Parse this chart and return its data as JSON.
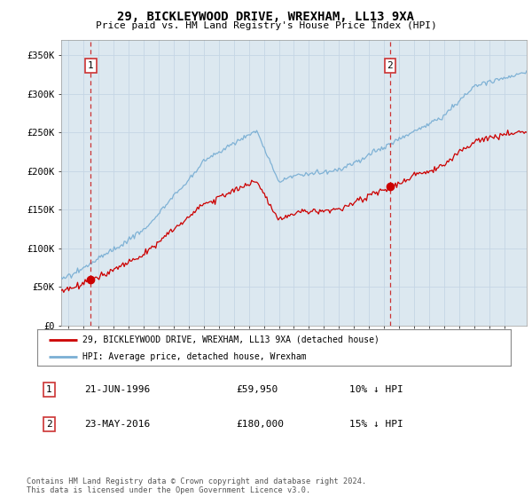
{
  "title": "29, BICKLEYWOOD DRIVE, WREXHAM, LL13 9XA",
  "subtitle": "Price paid vs. HM Land Registry's House Price Index (HPI)",
  "legend_label_red": "29, BICKLEYWOOD DRIVE, WREXHAM, LL13 9XA (detached house)",
  "legend_label_blue": "HPI: Average price, detached house, Wrexham",
  "annotation1_label": "1",
  "annotation1_date": "21-JUN-1996",
  "annotation1_price": "£59,950",
  "annotation1_hpi": "10% ↓ HPI",
  "annotation2_label": "2",
  "annotation2_date": "23-MAY-2016",
  "annotation2_price": "£180,000",
  "annotation2_hpi": "15% ↓ HPI",
  "footer": "Contains HM Land Registry data © Crown copyright and database right 2024.\nThis data is licensed under the Open Government Licence v3.0.",
  "xmin": 1994.5,
  "xmax": 2025.5,
  "ymin": 0,
  "ymax": 370000,
  "yticks": [
    0,
    50000,
    100000,
    150000,
    200000,
    250000,
    300000,
    350000
  ],
  "ytick_labels": [
    "£0",
    "£50K",
    "£100K",
    "£150K",
    "£200K",
    "£250K",
    "£300K",
    "£350K"
  ],
  "sale1_x": 1996.47,
  "sale1_y": 59950,
  "sale2_x": 2016.39,
  "sale2_y": 180000,
  "line_red_color": "#cc0000",
  "line_blue_color": "#7aafd4",
  "vline_color": "#cc3333",
  "grid_color": "#c5d5e5",
  "bg_color": "#dce8f0"
}
